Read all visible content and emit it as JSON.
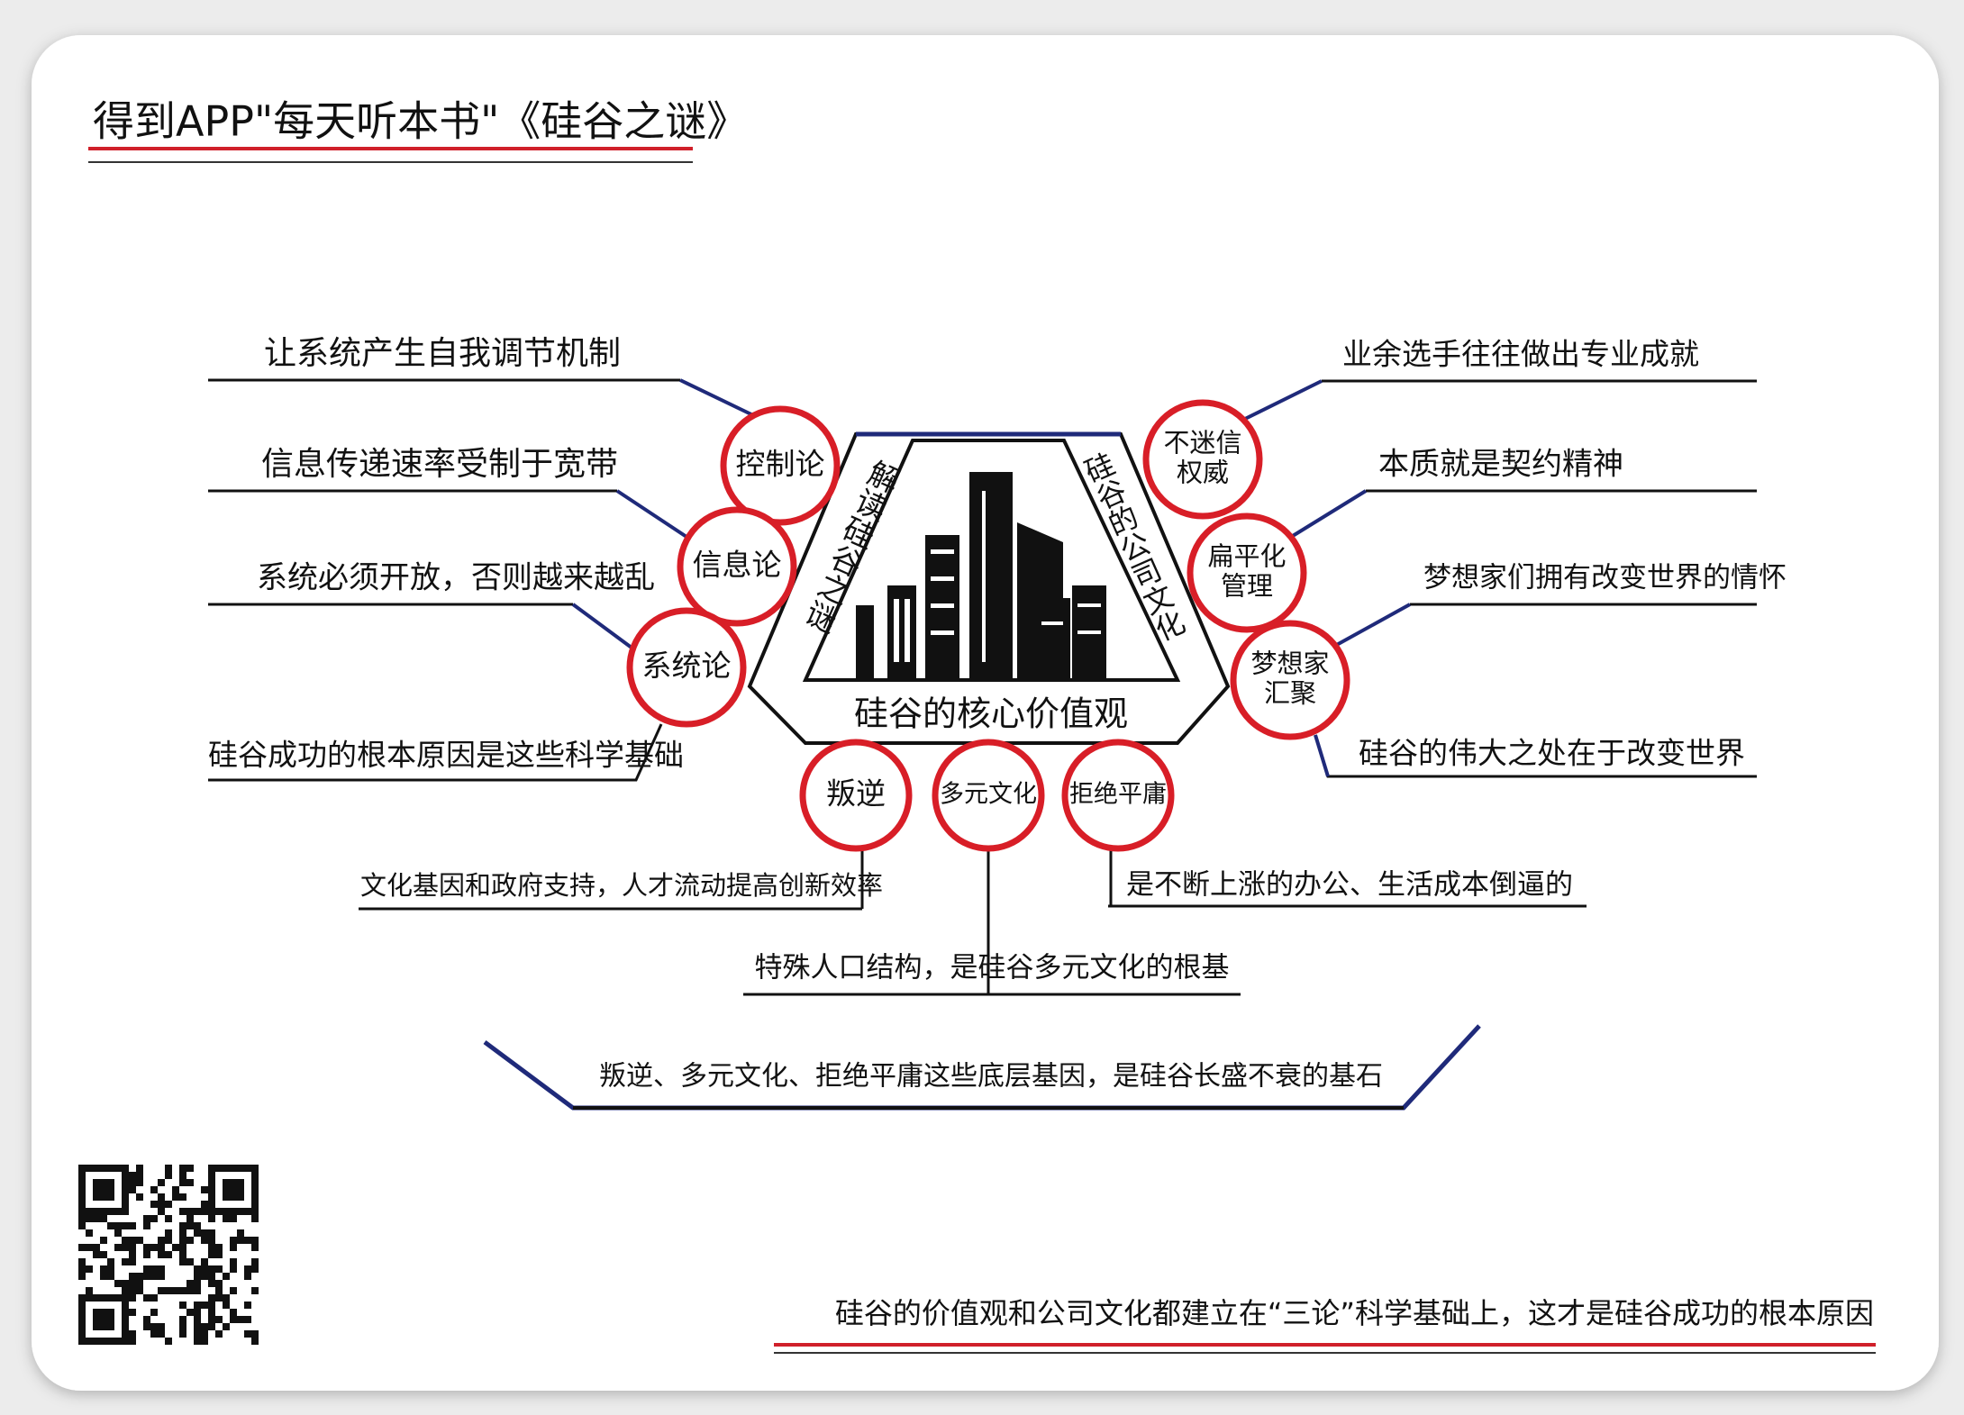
{
  "header": {
    "title": "得到APP\"每天听本书\"《硅谷之谜》"
  },
  "center": {
    "left_label": "解读硅谷之谜",
    "right_label": "硅谷的公司文化",
    "bottom_label": "硅谷的核心价值观"
  },
  "left_nodes": [
    {
      "label": [
        "控制论"
      ],
      "note": "让系统产生自我调节机制"
    },
    {
      "label": [
        "信息论"
      ],
      "note": "信息传递速率受制于宽带"
    },
    {
      "label": [
        "系统论"
      ],
      "note": "系统必须开放，否则越来越乱"
    }
  ],
  "left_summary": "硅谷成功的根本原因是这些科学基础",
  "right_nodes": [
    {
      "label": [
        "不迷信",
        "权威"
      ],
      "note": "业余选手往往做出专业成就"
    },
    {
      "label": [
        "扁平化",
        "管理"
      ],
      "note": "本质就是契约精神"
    },
    {
      "label": [
        "梦想家",
        "汇聚"
      ],
      "note": "梦想家们拥有改变世界的情怀"
    }
  ],
  "right_summary": "硅谷的伟大之处在于改变世界",
  "bottom_nodes": [
    {
      "label": [
        "叛逆"
      ],
      "note": "文化基因和政府支持，人才流动提高创新效率"
    },
    {
      "label": [
        "多元文化"
      ],
      "note": "特殊人口结构，是硅谷多元文化的根基"
    },
    {
      "label": [
        "拒绝平庸"
      ],
      "note": "是不断上涨的办公、生活成本倒逼的"
    }
  ],
  "bottom_summary": "叛逆、多元文化、拒绝平庸这些底层基因，是硅谷长盛不衰的基石",
  "footer": "硅谷的价值观和公司文化都建立在“三论”科学基础上，这才是硅谷成功的根本原因"
}
